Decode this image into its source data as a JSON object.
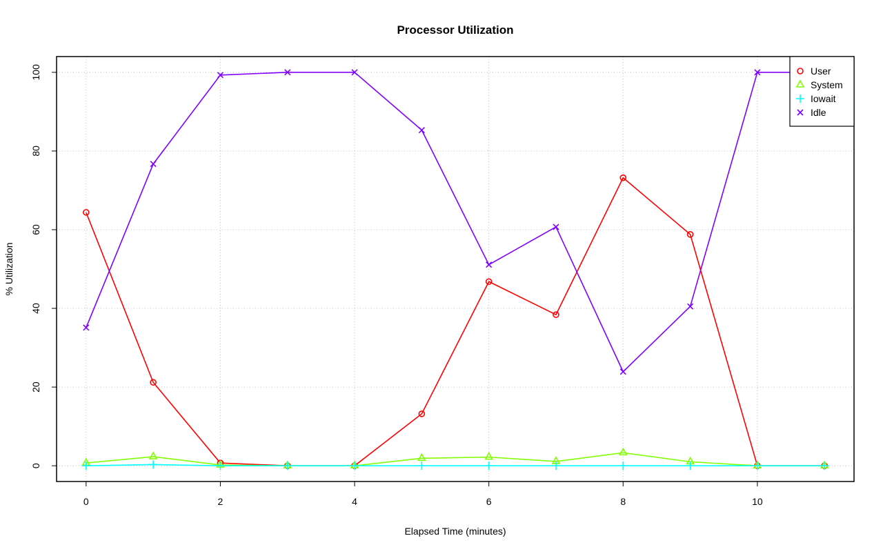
{
  "chart_data": {
    "type": "line",
    "title": "Processor Utilization",
    "xlabel": "Elapsed Time (minutes)",
    "ylabel": "% Utilization",
    "x": [
      0,
      1,
      2,
      3,
      4,
      5,
      6,
      7,
      8,
      9,
      10,
      11
    ],
    "xlim": [
      -0.44,
      11.44
    ],
    "ylim": [
      -4,
      104
    ],
    "xticks": [
      0,
      2,
      4,
      6,
      8,
      10
    ],
    "yticks": [
      0,
      20,
      40,
      60,
      80,
      100
    ],
    "grid": true,
    "legend_position": "top-right",
    "series": [
      {
        "name": "User",
        "color": "#FF0000",
        "marker": "circle",
        "values": [
          64.4,
          21.2,
          0.7,
          0,
          0,
          13.2,
          46.8,
          38.4,
          73.2,
          58.8,
          0,
          0
        ]
      },
      {
        "name": "System",
        "color": "#80FF00",
        "marker": "triangle",
        "values": [
          0.7,
          2.3,
          0.2,
          0,
          0,
          1.9,
          2.2,
          1.1,
          3.3,
          1.0,
          0,
          0
        ]
      },
      {
        "name": "Iowait",
        "color": "#00FFFF",
        "marker": "plus",
        "values": [
          0,
          0.3,
          0,
          0,
          0,
          0,
          0,
          0,
          0,
          0,
          0,
          0
        ]
      },
      {
        "name": "Idle",
        "color": "#8000FF",
        "marker": "cross",
        "values": [
          35.1,
          76.7,
          99.3,
          100,
          100,
          85.3,
          51.1,
          60.7,
          23.9,
          40.5,
          100,
          100
        ]
      }
    ]
  }
}
